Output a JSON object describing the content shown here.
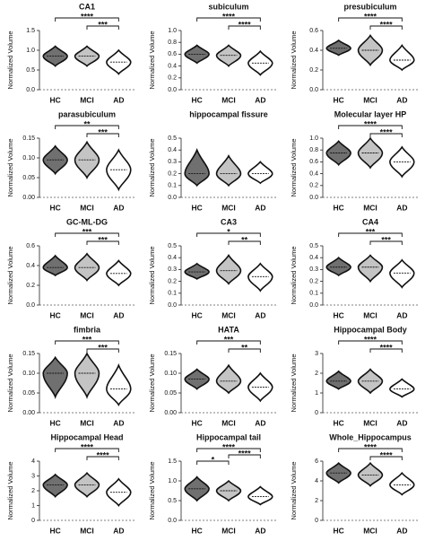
{
  "chart_data": [
    {
      "type": "violin",
      "title": "CA1",
      "y_label": "Normalized Volume",
      "categories": [
        "HC",
        "MCI",
        "AD"
      ],
      "colors": [
        "#707070",
        "#c4c4c4",
        "#ffffff"
      ],
      "values": [
        0.85,
        0.85,
        0.7
      ],
      "ranges": [
        [
          0.6,
          1.1
        ],
        [
          0.6,
          1.1
        ],
        [
          0.4,
          1.0
        ]
      ],
      "ylim": [
        0,
        1.5
      ],
      "yticks": [
        {
          "value": 0,
          "label": "0.0"
        },
        0.5,
        {
          "value": 1,
          "label": "1.0"
        },
        1.5
      ],
      "comparisons": [
        {
          "pair": [
            0,
            2
          ],
          "label": "****"
        },
        {
          "pair": [
            1,
            2
          ],
          "label": "***"
        }
      ]
    },
    {
      "type": "violin",
      "title": "subiculum",
      "y_label": "Normalized Volume",
      "categories": [
        "HC",
        "MCI",
        "AD"
      ],
      "colors": [
        "#707070",
        "#c4c4c4",
        "#ffffff"
      ],
      "values": [
        0.6,
        0.58,
        0.45
      ],
      "ranges": [
        [
          0.45,
          0.75
        ],
        [
          0.4,
          0.75
        ],
        [
          0.25,
          0.65
        ]
      ],
      "ylim": [
        0,
        1
      ],
      "yticks": [
        {
          "value": 0,
          "label": "0.0"
        },
        0.2,
        0.4,
        0.6,
        0.8,
        {
          "value": 1,
          "label": "1.0"
        }
      ],
      "comparisons": [
        {
          "pair": [
            0,
            2
          ],
          "label": "****"
        },
        {
          "pair": [
            1,
            2
          ],
          "label": "****"
        }
      ]
    },
    {
      "type": "violin",
      "title": "presubiculum",
      "y_label": "Normalized Volume",
      "categories": [
        "HC",
        "MCI",
        "AD"
      ],
      "colors": [
        "#707070",
        "#c4c4c4",
        "#ffffff"
      ],
      "values": [
        0.42,
        0.4,
        0.3
      ],
      "ranges": [
        [
          0.35,
          0.5
        ],
        [
          0.25,
          0.55
        ],
        [
          0.2,
          0.45
        ]
      ],
      "ylim": [
        0,
        0.6
      ],
      "yticks": [
        {
          "value": 0,
          "label": "0.0"
        },
        0.2,
        0.4,
        0.6
      ],
      "comparisons": [
        {
          "pair": [
            0,
            2
          ],
          "label": "****"
        },
        {
          "pair": [
            1,
            2
          ],
          "label": "****"
        }
      ]
    },
    {
      "type": "violin",
      "title": "parasubiculum",
      "y_label": "Normalized Volume",
      "categories": [
        "HC",
        "MCI",
        "AD"
      ],
      "colors": [
        "#707070",
        "#c4c4c4",
        "#ffffff"
      ],
      "values": [
        0.095,
        0.095,
        0.07
      ],
      "ranges": [
        [
          0.06,
          0.13
        ],
        [
          0.05,
          0.14
        ],
        [
          0.02,
          0.12
        ]
      ],
      "ylim": [
        0,
        0.15
      ],
      "yticks": [
        {
          "value": 0,
          "label": "0.00"
        },
        0.05,
        {
          "value": 0.1,
          "label": "0.10"
        },
        0.15
      ],
      "comparisons": [
        {
          "pair": [
            0,
            2
          ],
          "label": "**"
        },
        {
          "pair": [
            1,
            2
          ],
          "label": "***"
        }
      ]
    },
    {
      "type": "violin",
      "title": "hippocampal fissure",
      "y_label": "Normalized Volume",
      "categories": [
        "HC",
        "MCI",
        "AD"
      ],
      "colors": [
        "#707070",
        "#c4c4c4",
        "#ffffff"
      ],
      "values": [
        0.2,
        0.2,
        0.2
      ],
      "ranges": [
        [
          0.1,
          0.4
        ],
        [
          0.1,
          0.35
        ],
        [
          0.12,
          0.3
        ]
      ],
      "ylim": [
        0,
        0.5
      ],
      "yticks": [
        {
          "value": 0,
          "label": "0.0"
        },
        0.1,
        0.2,
        0.3,
        0.4,
        0.5
      ],
      "comparisons": []
    },
    {
      "type": "violin",
      "title": "Molecular layer HP",
      "y_label": "Normalized Volume",
      "categories": [
        "HC",
        "MCI",
        "AD"
      ],
      "colors": [
        "#707070",
        "#c4c4c4",
        "#ffffff"
      ],
      "values": [
        0.75,
        0.75,
        0.6
      ],
      "ranges": [
        [
          0.55,
          0.95
        ],
        [
          0.5,
          1.0
        ],
        [
          0.35,
          0.85
        ]
      ],
      "ylim": [
        0,
        1
      ],
      "yticks": [
        {
          "value": 0,
          "label": "0.0"
        },
        0.2,
        0.4,
        0.6,
        0.8,
        {
          "value": 1,
          "label": "1.0"
        }
      ],
      "comparisons": [
        {
          "pair": [
            0,
            2
          ],
          "label": "****"
        },
        {
          "pair": [
            1,
            2
          ],
          "label": "****"
        }
      ]
    },
    {
      "type": "violin",
      "title": "GC-ML-DG",
      "y_label": "Normalized Volume",
      "categories": [
        "HC",
        "MCI",
        "AD"
      ],
      "colors": [
        "#707070",
        "#c4c4c4",
        "#ffffff"
      ],
      "values": [
        0.38,
        0.38,
        0.32
      ],
      "ranges": [
        [
          0.3,
          0.5
        ],
        [
          0.25,
          0.52
        ],
        [
          0.2,
          0.45
        ]
      ],
      "ylim": [
        0,
        0.6
      ],
      "yticks": [
        {
          "value": 0,
          "label": "0.0"
        },
        0.2,
        0.4,
        0.6
      ],
      "comparisons": [
        {
          "pair": [
            0,
            2
          ],
          "label": "***"
        },
        {
          "pair": [
            1,
            2
          ],
          "label": "***"
        }
      ]
    },
    {
      "type": "violin",
      "title": "CA3",
      "y_label": "Normalized Volume",
      "categories": [
        "HC",
        "MCI",
        "AD"
      ],
      "colors": [
        "#707070",
        "#c4c4c4",
        "#ffffff"
      ],
      "values": [
        0.28,
        0.29,
        0.24
      ],
      "ranges": [
        [
          0.22,
          0.35
        ],
        [
          0.18,
          0.42
        ],
        [
          0.12,
          0.35
        ]
      ],
      "ylim": [
        0,
        0.5
      ],
      "yticks": [
        {
          "value": 0,
          "label": "0.0"
        },
        0.1,
        0.2,
        0.3,
        0.4,
        0.5
      ],
      "comparisons": [
        {
          "pair": [
            0,
            2
          ],
          "label": "*"
        },
        {
          "pair": [
            1,
            2
          ],
          "label": "**"
        }
      ]
    },
    {
      "type": "violin",
      "title": "CA4",
      "y_label": "Normalized Volume",
      "categories": [
        "HC",
        "MCI",
        "AD"
      ],
      "colors": [
        "#707070",
        "#c4c4c4",
        "#ffffff"
      ],
      "values": [
        0.32,
        0.32,
        0.27
      ],
      "ranges": [
        [
          0.25,
          0.4
        ],
        [
          0.2,
          0.42
        ],
        [
          0.15,
          0.38
        ]
      ],
      "ylim": [
        0,
        0.5
      ],
      "yticks": [
        {
          "value": 0,
          "label": "0.0"
        },
        0.1,
        0.2,
        0.3,
        0.4,
        0.5
      ],
      "comparisons": [
        {
          "pair": [
            0,
            2
          ],
          "label": "***"
        },
        {
          "pair": [
            1,
            2
          ],
          "label": "***"
        }
      ]
    },
    {
      "type": "violin",
      "title": "fimbria",
      "y_label": "Normalized Volume",
      "categories": [
        "HC",
        "MCI",
        "AD"
      ],
      "colors": [
        "#707070",
        "#c4c4c4",
        "#ffffff"
      ],
      "values": [
        0.1,
        0.1,
        0.06
      ],
      "ranges": [
        [
          0.04,
          0.14
        ],
        [
          0.04,
          0.15
        ],
        [
          0.02,
          0.12
        ]
      ],
      "ylim": [
        0,
        0.15
      ],
      "yticks": [
        {
          "value": 0,
          "label": "0.00"
        },
        0.05,
        {
          "value": 0.1,
          "label": "0.10"
        },
        0.15
      ],
      "comparisons": [
        {
          "pair": [
            0,
            2
          ],
          "label": "***"
        },
        {
          "pair": [
            1,
            2
          ],
          "label": "***"
        }
      ]
    },
    {
      "type": "violin",
      "title": "HATA",
      "y_label": "Normalized Volume",
      "categories": [
        "HC",
        "MCI",
        "AD"
      ],
      "colors": [
        "#707070",
        "#c4c4c4",
        "#ffffff"
      ],
      "values": [
        0.085,
        0.08,
        0.065
      ],
      "ranges": [
        [
          0.06,
          0.11
        ],
        [
          0.05,
          0.12
        ],
        [
          0.03,
          0.1
        ]
      ],
      "ylim": [
        0,
        0.15
      ],
      "yticks": [
        {
          "value": 0,
          "label": "0.00"
        },
        0.05,
        {
          "value": 0.1,
          "label": "0.10"
        },
        0.15
      ],
      "comparisons": [
        {
          "pair": [
            0,
            2
          ],
          "label": "***"
        },
        {
          "pair": [
            1,
            2
          ],
          "label": "**"
        }
      ]
    },
    {
      "type": "violin",
      "title": "Hippocampal Body",
      "y_label": "Normalized Volume",
      "categories": [
        "HC",
        "MCI",
        "AD"
      ],
      "colors": [
        "#707070",
        "#c4c4c4",
        "#ffffff"
      ],
      "values": [
        1.6,
        1.6,
        1.2
      ],
      "ranges": [
        [
          1.2,
          2.1
        ],
        [
          1.0,
          2.2
        ],
        [
          0.8,
          1.7
        ]
      ],
      "ylim": [
        0,
        3
      ],
      "yticks": [
        0,
        1,
        2,
        3
      ],
      "comparisons": [
        {
          "pair": [
            0,
            2
          ],
          "label": "****"
        },
        {
          "pair": [
            1,
            2
          ],
          "label": "****"
        }
      ]
    },
    {
      "type": "violin",
      "title": "Hippocampal Head",
      "y_label": "Normalized Volume",
      "categories": [
        "HC",
        "MCI",
        "AD"
      ],
      "colors": [
        "#707070",
        "#c4c4c4",
        "#ffffff"
      ],
      "values": [
        2.4,
        2.4,
        1.9
      ],
      "ranges": [
        [
          1.6,
          3.1
        ],
        [
          1.6,
          3.2
        ],
        [
          1.0,
          2.8
        ]
      ],
      "ylim": [
        0,
        4
      ],
      "yticks": [
        0,
        1,
        2,
        3,
        4
      ],
      "comparisons": [
        {
          "pair": [
            0,
            2
          ],
          "label": "****"
        },
        {
          "pair": [
            1,
            2
          ],
          "label": "****"
        }
      ]
    },
    {
      "type": "violin",
      "title": "Hippocampal tail",
      "y_label": "Normalized Volume",
      "categories": [
        "HC",
        "MCI",
        "AD"
      ],
      "colors": [
        "#707070",
        "#c4c4c4",
        "#ffffff"
      ],
      "values": [
        0.8,
        0.75,
        0.6
      ],
      "ranges": [
        [
          0.5,
          1.1
        ],
        [
          0.5,
          1.0
        ],
        [
          0.4,
          0.85
        ]
      ],
      "ylim": [
        0,
        1.5
      ],
      "yticks": [
        {
          "value": 0,
          "label": "0.0"
        },
        0.5,
        {
          "value": 1,
          "label": "1.0"
        },
        1.5
      ],
      "comparisons": [
        {
          "pair": [
            0,
            2
          ],
          "label": "****"
        },
        {
          "pair": [
            1,
            2
          ],
          "label": "****"
        },
        {
          "pair": [
            0,
            1
          ],
          "label": "*"
        }
      ]
    },
    {
      "type": "violin",
      "title": "Whole_Hippocampus",
      "y_label": "Normalized Volume",
      "categories": [
        "HC",
        "MCI",
        "AD"
      ],
      "colors": [
        "#707070",
        "#c4c4c4",
        "#ffffff"
      ],
      "values": [
        4.8,
        4.6,
        3.6
      ],
      "ranges": [
        [
          3.8,
          5.8
        ],
        [
          3.5,
          5.8
        ],
        [
          2.6,
          4.8
        ]
      ],
      "ylim": [
        0,
        6
      ],
      "yticks": [
        0,
        2,
        4,
        6
      ],
      "comparisons": [
        {
          "pair": [
            0,
            2
          ],
          "label": "****"
        },
        {
          "pair": [
            1,
            2
          ],
          "label": "****"
        }
      ]
    }
  ]
}
